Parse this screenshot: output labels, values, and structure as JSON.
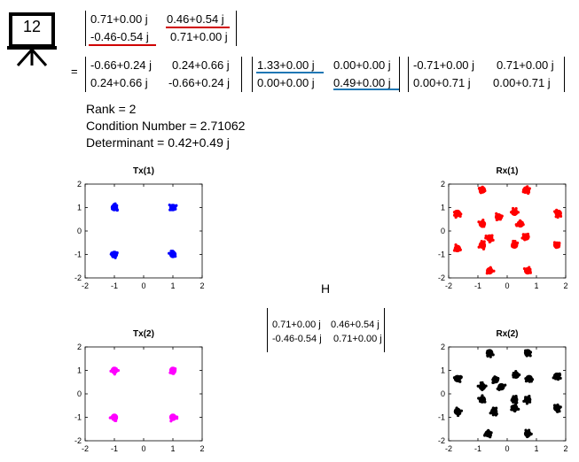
{
  "slide": {
    "number": "12"
  },
  "equation": {
    "equals": "=",
    "H": [
      [
        "0.71+0.00 j",
        "0.46+0.54 j"
      ],
      [
        "-0.46-0.54 j",
        "0.71+0.00 j"
      ]
    ],
    "U": [
      [
        "-0.66+0.24 j",
        "0.24+0.66 j"
      ],
      [
        "0.24+0.66 j",
        "-0.66+0.24 j"
      ]
    ],
    "S": [
      [
        "1.33+0.00 j",
        "0.00+0.00 j"
      ],
      [
        "0.00+0.00 j",
        "0.49+0.00 j"
      ]
    ],
    "V": [
      [
        "-0.71+0.00 j",
        "0.71+0.00 j"
      ],
      [
        "0.00+0.71 j",
        "0.00+0.71 j"
      ]
    ]
  },
  "stats": {
    "rank": "Rank = 2",
    "condition": "Condition Number = 2.71062",
    "determinant": "Determinant = 0.42+0.49 j"
  },
  "channel": {
    "label": "H",
    "matrix": [
      [
        "0.71+0.00 j",
        "0.46+0.54 j"
      ],
      [
        "-0.46-0.54 j",
        "0.71+0.00 j"
      ]
    ]
  },
  "colors": {
    "tx1": "#0000ff",
    "tx2": "#ff00ff",
    "rx1": "#ff0000",
    "rx2": "#000000",
    "underline_red": "#d00000",
    "underline_blue": "#1f77b4"
  },
  "chart_data": [
    {
      "type": "scatter",
      "title": "Tx(1)",
      "xlim": [
        -2,
        2
      ],
      "ylim": [
        -2,
        2
      ],
      "xticks": [
        "-2",
        "-1",
        "0",
        "1",
        "2"
      ],
      "yticks": [
        "2",
        "1",
        "0",
        "-1",
        "-2"
      ],
      "grid": false,
      "points": [
        [
          -1,
          1
        ],
        [
          1,
          1
        ],
        [
          -1,
          -1
        ],
        [
          1,
          -1
        ]
      ]
    },
    {
      "type": "scatter",
      "title": "Rx(1)",
      "xlim": [
        -2,
        2
      ],
      "ylim": [
        -2,
        2
      ],
      "xticks": [
        "-2",
        "-1",
        "0",
        "1",
        "2"
      ],
      "yticks": [
        "2",
        "1",
        "0",
        "-1",
        "-2"
      ],
      "grid": false,
      "points": [
        [
          -0.85,
          1.75
        ],
        [
          0.65,
          1.75
        ],
        [
          -1.7,
          0.75
        ],
        [
          -0.3,
          0.6
        ],
        [
          0.25,
          0.8
        ],
        [
          -0.85,
          0.3
        ],
        [
          0.45,
          0.3
        ],
        [
          1.75,
          0.75
        ],
        [
          -0.6,
          -0.3
        ],
        [
          0.65,
          -0.25
        ],
        [
          -1.7,
          -0.75
        ],
        [
          -0.85,
          -0.6
        ],
        [
          0.25,
          -0.6
        ],
        [
          1.7,
          -0.6
        ],
        [
          -0.6,
          -1.7
        ],
        [
          0.7,
          -1.7
        ]
      ]
    },
    {
      "type": "scatter",
      "title": "Tx(2)",
      "xlim": [
        -2,
        2
      ],
      "ylim": [
        -2,
        2
      ],
      "xticks": [
        "-2",
        "-1",
        "0",
        "1",
        "2"
      ],
      "yticks": [
        "2",
        "1",
        "0",
        "-1",
        "-2"
      ],
      "grid": false,
      "points": [
        [
          -1,
          1
        ],
        [
          1,
          1
        ],
        [
          -1,
          -1
        ],
        [
          1,
          -1
        ]
      ]
    },
    {
      "type": "scatter",
      "title": "Rx(2)",
      "xlim": [
        -2,
        2
      ],
      "ylim": [
        -2,
        2
      ],
      "xticks": [
        "-2",
        "-1",
        "0",
        "1",
        "2"
      ],
      "yticks": [
        "2",
        "1",
        "0",
        "-1",
        "-2"
      ],
      "grid": false,
      "points": [
        [
          -0.6,
          1.75
        ],
        [
          0.7,
          1.75
        ],
        [
          -1.7,
          0.65
        ],
        [
          -0.4,
          0.6
        ],
        [
          0.3,
          0.8
        ],
        [
          0.75,
          0.65
        ],
        [
          -0.85,
          0.3
        ],
        [
          -0.2,
          0.3
        ],
        [
          1.7,
          0.75
        ],
        [
          -0.85,
          -0.25
        ],
        [
          0.25,
          -0.25
        ],
        [
          0.7,
          -0.25
        ],
        [
          -1.7,
          -0.75
        ],
        [
          -0.45,
          -0.75
        ],
        [
          0.25,
          -0.6
        ],
        [
          1.7,
          -0.6
        ],
        [
          -0.65,
          -1.7
        ],
        [
          0.7,
          -1.7
        ]
      ]
    }
  ]
}
